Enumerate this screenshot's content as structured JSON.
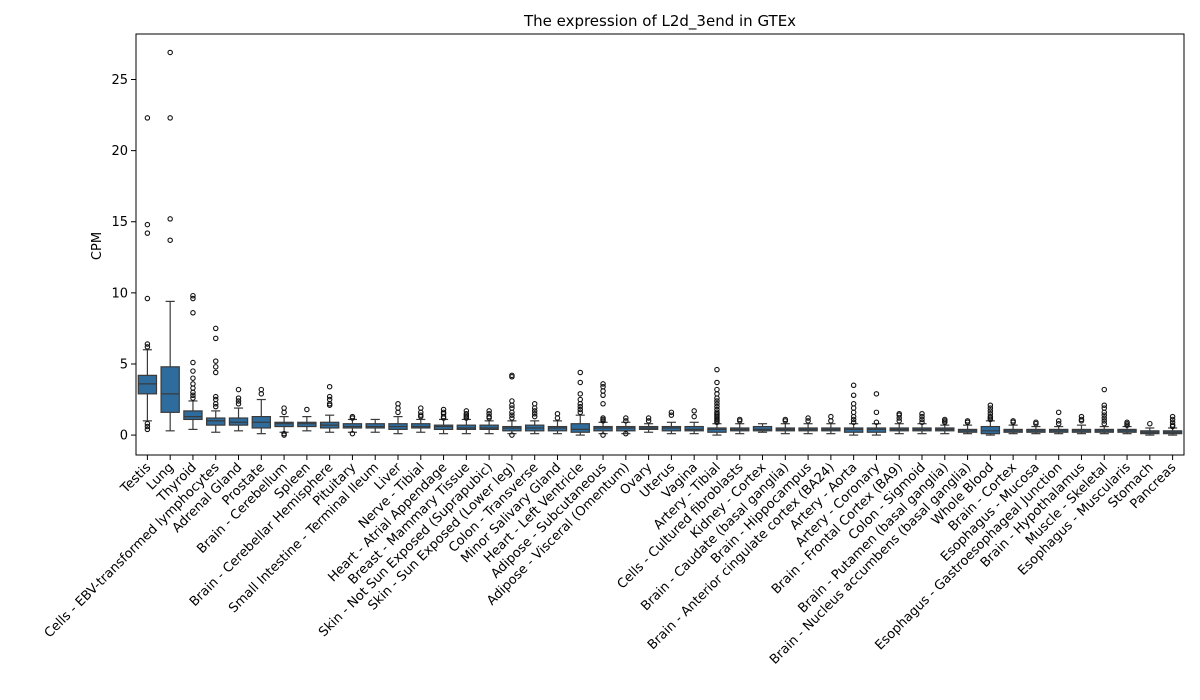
{
  "chart_data": {
    "type": "box",
    "title": "The expression of L2d_3end in GTEx",
    "xlabel": "",
    "ylabel": "CPM",
    "ylim": [
      -1.4,
      28.2
    ],
    "yticks": [
      0,
      5,
      10,
      15,
      20,
      25
    ],
    "grid": false,
    "colors": {
      "box": "#2f6c9e",
      "line": "#3a3a3a"
    },
    "categories": [
      {
        "name": "Testis",
        "q1": 2.9,
        "median": 3.6,
        "q3": 4.2,
        "lo": 1.0,
        "hi": 6.0,
        "outliers": [
          22.3,
          14.8,
          14.2,
          9.6,
          6.4,
          6.2,
          0.8,
          0.6,
          0.4
        ]
      },
      {
        "name": "Lung",
        "q1": 1.6,
        "median": 2.9,
        "q3": 4.8,
        "lo": 0.3,
        "hi": 9.4,
        "outliers": [
          26.9,
          22.3,
          15.2,
          13.7
        ]
      },
      {
        "name": "Thyroid",
        "q1": 1.1,
        "median": 1.3,
        "q3": 1.7,
        "lo": 0.4,
        "hi": 2.4,
        "outliers": [
          9.8,
          9.6,
          8.6,
          5.1,
          4.5,
          4.0,
          3.6,
          3.3,
          3.0,
          2.8,
          2.6
        ]
      },
      {
        "name": "Cells - EBV-transformed lymphocytes",
        "q1": 0.7,
        "median": 1.0,
        "q3": 1.2,
        "lo": 0.2,
        "hi": 1.7,
        "outliers": [
          7.5,
          6.8,
          5.2,
          4.8,
          4.4,
          2.7,
          2.5,
          2.2,
          2.0
        ]
      },
      {
        "name": "Adrenal Gland",
        "q1": 0.7,
        "median": 0.9,
        "q3": 1.2,
        "lo": 0.3,
        "hi": 1.9,
        "outliers": [
          3.2,
          2.6,
          2.4,
          2.2
        ]
      },
      {
        "name": "Prostate",
        "q1": 0.5,
        "median": 0.9,
        "q3": 1.3,
        "lo": 0.1,
        "hi": 2.5,
        "outliers": [
          3.2,
          2.9
        ]
      },
      {
        "name": "Brain - Cerebellum",
        "q1": 0.6,
        "median": 0.8,
        "q3": 0.9,
        "lo": 0.2,
        "hi": 1.3,
        "outliers": [
          1.9,
          1.6,
          0.1,
          0.0
        ]
      },
      {
        "name": "Spleen",
        "q1": 0.6,
        "median": 0.8,
        "q3": 0.9,
        "lo": 0.3,
        "hi": 1.3,
        "outliers": [
          1.8
        ]
      },
      {
        "name": "Brain - Cerebellar Hemisphere",
        "q1": 0.5,
        "median": 0.7,
        "q3": 0.9,
        "lo": 0.2,
        "hi": 1.4,
        "outliers": [
          3.4,
          2.7,
          2.5,
          2.2,
          2.1
        ]
      },
      {
        "name": "Pituitary",
        "q1": 0.5,
        "median": 0.6,
        "q3": 0.8,
        "lo": 0.2,
        "hi": 1.1,
        "outliers": [
          1.3,
          1.2,
          0.1
        ]
      },
      {
        "name": "Small Intestine - Terminal Ileum",
        "q1": 0.5,
        "median": 0.6,
        "q3": 0.8,
        "lo": 0.2,
        "hi": 1.1,
        "outliers": []
      },
      {
        "name": "Liver",
        "q1": 0.4,
        "median": 0.6,
        "q3": 0.8,
        "lo": 0.1,
        "hi": 1.3,
        "outliers": [
          2.2,
          1.9,
          1.6
        ]
      },
      {
        "name": "Nerve - Tibial",
        "q1": 0.5,
        "median": 0.6,
        "q3": 0.8,
        "lo": 0.2,
        "hi": 1.1,
        "outliers": [
          1.9,
          1.6,
          1.4,
          1.3
        ]
      },
      {
        "name": "Heart - Atrial Appendage",
        "q1": 0.4,
        "median": 0.6,
        "q3": 0.7,
        "lo": 0.1,
        "hi": 1.1,
        "outliers": [
          1.8,
          1.6,
          1.5,
          1.3,
          1.2
        ]
      },
      {
        "name": "Breast - Mammary Tissue",
        "q1": 0.4,
        "median": 0.5,
        "q3": 0.7,
        "lo": 0.1,
        "hi": 1.1,
        "outliers": [
          1.7,
          1.5,
          1.4,
          1.3,
          1.2
        ]
      },
      {
        "name": "Skin - Not Sun Exposed (Suprapubic)",
        "q1": 0.4,
        "median": 0.5,
        "q3": 0.7,
        "lo": 0.1,
        "hi": 1.0,
        "outliers": [
          1.7,
          1.5,
          1.3,
          1.2
        ]
      },
      {
        "name": "Skin - Sun Exposed (Lower leg)",
        "q1": 0.3,
        "median": 0.5,
        "q3": 0.6,
        "lo": 0.1,
        "hi": 1.0,
        "outliers": [
          4.2,
          4.1,
          2.4,
          2.1,
          1.9,
          1.6,
          1.4,
          1.2,
          0.0
        ]
      },
      {
        "name": "Colon - Transverse",
        "q1": 0.3,
        "median": 0.5,
        "q3": 0.7,
        "lo": 0.1,
        "hi": 1.0,
        "outliers": [
          2.2,
          1.9,
          1.7,
          1.5,
          1.3
        ]
      },
      {
        "name": "Minor Salivary Gland",
        "q1": 0.3,
        "median": 0.5,
        "q3": 0.6,
        "lo": 0.1,
        "hi": 1.0,
        "outliers": [
          1.5,
          1.2
        ]
      },
      {
        "name": "Heart - Left Ventricle",
        "q1": 0.2,
        "median": 0.4,
        "q3": 0.8,
        "lo": 0.0,
        "hi": 1.4,
        "outliers": [
          4.4,
          3.7,
          2.9,
          2.5,
          2.2,
          2.0,
          1.8,
          1.6
        ]
      },
      {
        "name": "Adipose - Subcutaneous",
        "q1": 0.3,
        "median": 0.5,
        "q3": 0.6,
        "lo": 0.1,
        "hi": 0.9,
        "outliers": [
          3.6,
          3.4,
          3.1,
          2.8,
          2.2,
          1.2,
          1.1,
          1.0,
          0.0
        ]
      },
      {
        "name": "Adipose - Visceral (Omentum)",
        "q1": 0.3,
        "median": 0.5,
        "q3": 0.6,
        "lo": 0.1,
        "hi": 0.9,
        "outliers": [
          1.2,
          1.0,
          0.1
        ]
      },
      {
        "name": "Ovary",
        "q1": 0.4,
        "median": 0.5,
        "q3": 0.6,
        "lo": 0.2,
        "hi": 0.8,
        "outliers": [
          1.2,
          1.0
        ]
      },
      {
        "name": "Uterus",
        "q1": 0.3,
        "median": 0.5,
        "q3": 0.6,
        "lo": 0.1,
        "hi": 0.9,
        "outliers": [
          1.6,
          1.4
        ]
      },
      {
        "name": "Vagina",
        "q1": 0.3,
        "median": 0.4,
        "q3": 0.6,
        "lo": 0.1,
        "hi": 0.9,
        "outliers": [
          1.7,
          1.3
        ]
      },
      {
        "name": "Artery - Tibial",
        "q1": 0.2,
        "median": 0.4,
        "q3": 0.5,
        "lo": 0.0,
        "hi": 0.8,
        "outliers": [
          4.6,
          3.7,
          3.2,
          2.9,
          2.6,
          2.4,
          2.2,
          2.0,
          1.8,
          1.6,
          1.5,
          1.4,
          1.3,
          1.2,
          1.1,
          1.0,
          0.9
        ]
      },
      {
        "name": "Cells - Cultured fibroblasts",
        "q1": 0.3,
        "median": 0.4,
        "q3": 0.5,
        "lo": 0.1,
        "hi": 0.8,
        "outliers": [
          1.1,
          1.0
        ]
      },
      {
        "name": "Kidney - Cortex",
        "q1": 0.3,
        "median": 0.4,
        "q3": 0.6,
        "lo": 0.2,
        "hi": 0.8,
        "outliers": []
      },
      {
        "name": "Brain - Caudate (basal ganglia)",
        "q1": 0.3,
        "median": 0.4,
        "q3": 0.5,
        "lo": 0.1,
        "hi": 0.8,
        "outliers": [
          1.1,
          1.0
        ]
      },
      {
        "name": "Brain - Hippocampus",
        "q1": 0.3,
        "median": 0.4,
        "q3": 0.5,
        "lo": 0.1,
        "hi": 0.8,
        "outliers": [
          1.2,
          1.0
        ]
      },
      {
        "name": "Brain - Anterior cingulate cortex (BA24)",
        "q1": 0.3,
        "median": 0.4,
        "q3": 0.5,
        "lo": 0.1,
        "hi": 0.8,
        "outliers": [
          1.3,
          1.0
        ]
      },
      {
        "name": "Artery - Aorta",
        "q1": 0.2,
        "median": 0.4,
        "q3": 0.5,
        "lo": 0.0,
        "hi": 0.8,
        "outliers": [
          3.5,
          2.8,
          2.2,
          1.9,
          1.6,
          1.3,
          1.1,
          0.9
        ]
      },
      {
        "name": "Artery - Coronary",
        "q1": 0.2,
        "median": 0.4,
        "q3": 0.5,
        "lo": 0.0,
        "hi": 0.8,
        "outliers": [
          2.9,
          1.6,
          0.9
        ]
      },
      {
        "name": "Brain - Frontal Cortex (BA9)",
        "q1": 0.3,
        "median": 0.4,
        "q3": 0.5,
        "lo": 0.1,
        "hi": 0.8,
        "outliers": [
          1.5,
          1.4,
          1.2,
          1.0
        ]
      },
      {
        "name": "Colon - Sigmoid",
        "q1": 0.3,
        "median": 0.4,
        "q3": 0.5,
        "lo": 0.1,
        "hi": 0.8,
        "outliers": [
          1.5,
          1.3,
          1.1,
          0.9
        ]
      },
      {
        "name": "Brain - Putamen (basal ganglia)",
        "q1": 0.3,
        "median": 0.4,
        "q3": 0.5,
        "lo": 0.1,
        "hi": 0.7,
        "outliers": [
          1.1,
          1.0,
          0.9
        ]
      },
      {
        "name": "Brain - Nucleus accumbens (basal ganglia)",
        "q1": 0.2,
        "median": 0.3,
        "q3": 0.4,
        "lo": 0.1,
        "hi": 0.7,
        "outliers": [
          1.0,
          0.9
        ]
      },
      {
        "name": "Whole Blood",
        "q1": 0.1,
        "median": 0.3,
        "q3": 0.6,
        "lo": 0.0,
        "hi": 1.0,
        "outliers": [
          2.1,
          1.9,
          1.7,
          1.5,
          1.3,
          1.2,
          1.1
        ]
      },
      {
        "name": "Brain - Cortex",
        "q1": 0.2,
        "median": 0.3,
        "q3": 0.4,
        "lo": 0.1,
        "hi": 0.7,
        "outliers": [
          1.0,
          0.9
        ]
      },
      {
        "name": "Esophagus - Mucosa",
        "q1": 0.2,
        "median": 0.3,
        "q3": 0.4,
        "lo": 0.1,
        "hi": 0.6,
        "outliers": [
          0.9,
          0.8
        ]
      },
      {
        "name": "Esophagus - Gastroesophageal Junction",
        "q1": 0.2,
        "median": 0.3,
        "q3": 0.4,
        "lo": 0.1,
        "hi": 0.6,
        "outliers": [
          1.6,
          1.0,
          0.8
        ]
      },
      {
        "name": "Brain - Hypothalamus",
        "q1": 0.2,
        "median": 0.3,
        "q3": 0.4,
        "lo": 0.1,
        "hi": 0.7,
        "outliers": [
          1.3,
          1.1,
          1.0
        ]
      },
      {
        "name": "Muscle - Skeletal",
        "q1": 0.2,
        "median": 0.3,
        "q3": 0.4,
        "lo": 0.1,
        "hi": 0.6,
        "outliers": [
          3.2,
          2.1,
          1.9,
          1.6,
          1.4,
          1.2,
          1.0,
          0.8
        ]
      },
      {
        "name": "Esophagus - Muscularis",
        "q1": 0.2,
        "median": 0.3,
        "q3": 0.4,
        "lo": 0.1,
        "hi": 0.6,
        "outliers": [
          0.9,
          0.8,
          0.7
        ]
      },
      {
        "name": "Stomach",
        "q1": 0.1,
        "median": 0.2,
        "q3": 0.3,
        "lo": 0.0,
        "hi": 0.5,
        "outliers": [
          0.8
        ]
      },
      {
        "name": "Pancreas",
        "q1": 0.1,
        "median": 0.2,
        "q3": 0.3,
        "lo": 0.0,
        "hi": 0.5,
        "outliers": [
          1.3,
          1.1,
          0.9,
          0.7,
          0.6
        ]
      }
    ]
  }
}
